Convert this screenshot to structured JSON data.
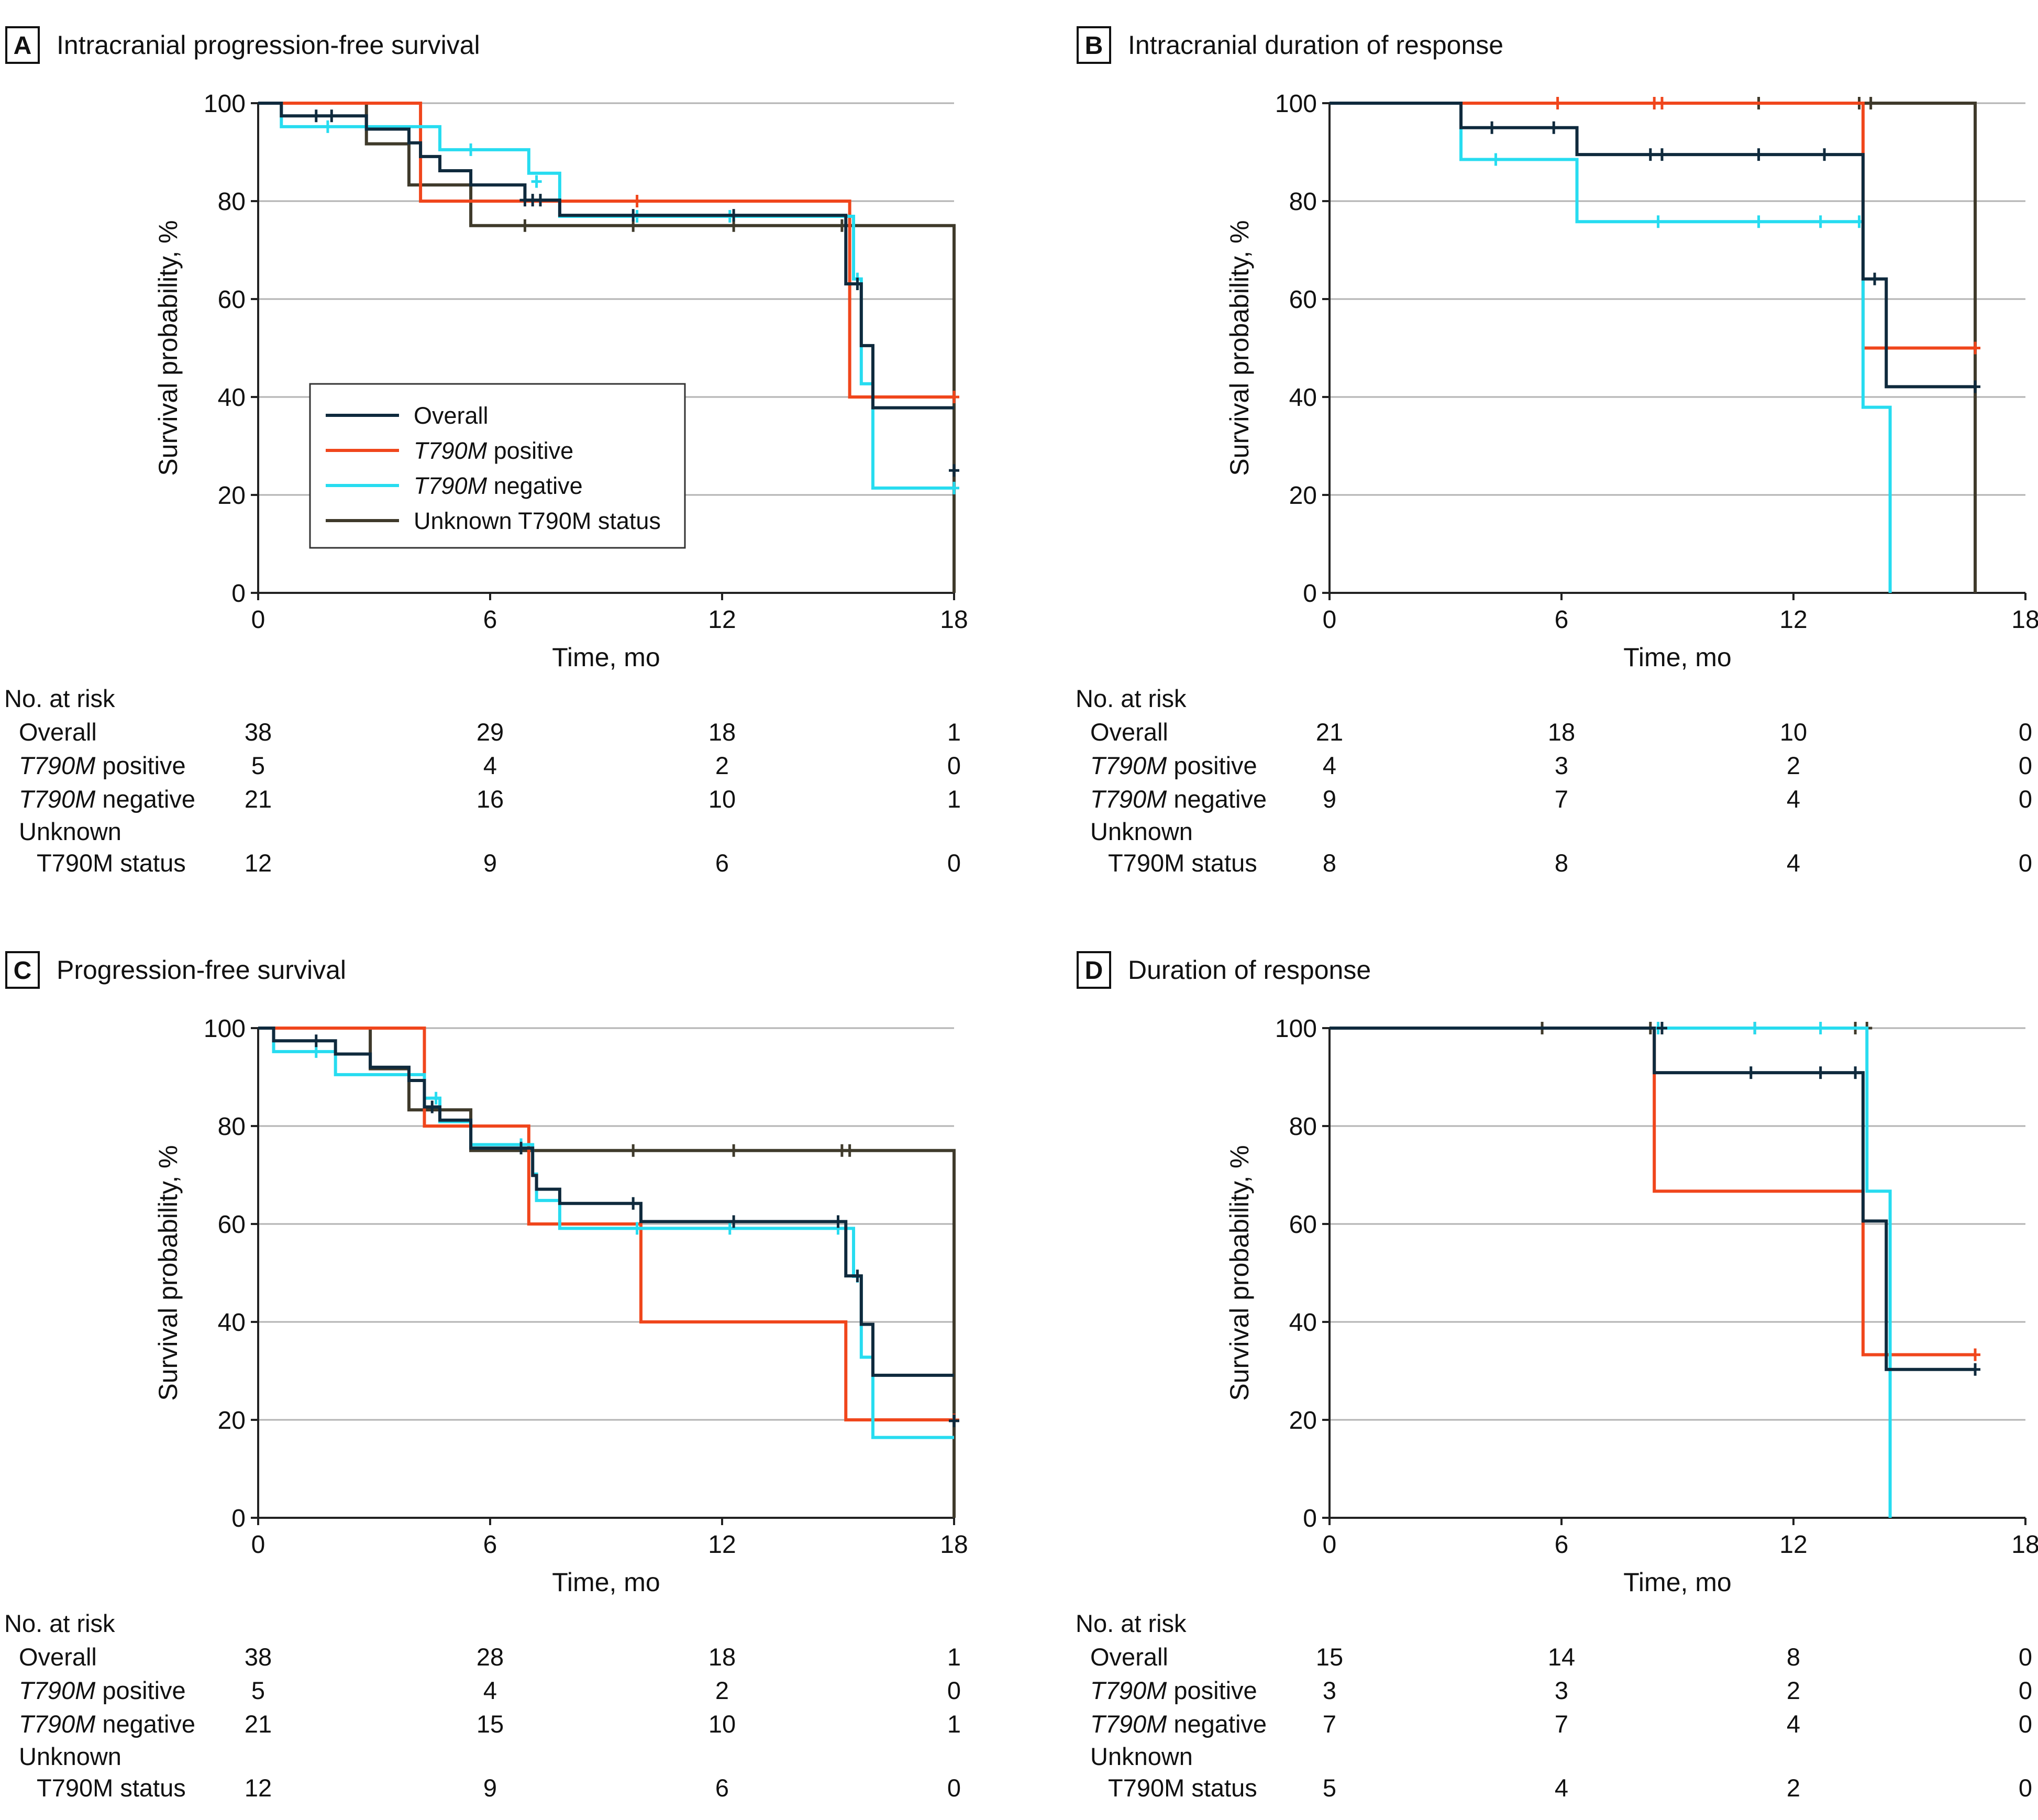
{
  "figure": {
    "axes": {
      "xlabel": "Time, mo",
      "ylabel": "Survival probability, %",
      "xticks": [
        0,
        6,
        12,
        18
      ],
      "yticks": [
        0,
        20,
        40,
        60,
        80,
        100
      ],
      "xlim": [
        0,
        18
      ],
      "ylim": [
        0,
        100
      ]
    },
    "colors": {
      "overall": "#0f2a3d",
      "t790m_positive": "#f0461c",
      "t790m_negative": "#27dcf0",
      "unknown": "#3f3a2b"
    },
    "legend": {
      "placement": "panel A, center-left inside plot",
      "items": [
        {
          "key": "overall",
          "label": "Overall",
          "italic": "",
          "rest": ""
        },
        {
          "key": "t790m_positive",
          "label": "",
          "italic": "T790M",
          "rest": " positive"
        },
        {
          "key": "t790m_negative",
          "label": "",
          "italic": "T790M",
          "rest": " negative"
        },
        {
          "key": "unknown",
          "label": "Unknown T790M status",
          "italic": "",
          "rest": ""
        }
      ]
    },
    "risk_table_labels": {
      "header": "No. at risk",
      "overall": "Overall",
      "positive_italic": "T790M",
      "positive_rest": " positive",
      "negative_italic": "T790M",
      "negative_rest": " negative",
      "unknown_line1": "Unknown",
      "unknown_line2": "T790M status"
    }
  },
  "chart_data": [
    {
      "id": "A",
      "letter": "A",
      "title": "Intracranial progression-free survival",
      "type": "line",
      "xlabel": "Time, mo",
      "ylabel": "Survival probability, %",
      "xlim": [
        0,
        18
      ],
      "ylim": [
        0,
        100
      ],
      "show_legend": true,
      "series": [
        {
          "key": "unknown",
          "name": "Unknown T790M status",
          "steps": [
            [
              0,
              100
            ],
            [
              2.8,
              91.7
            ],
            [
              3.9,
              83.3
            ],
            [
              5.5,
              75
            ],
            [
              18,
              0
            ]
          ],
          "censors": [
            [
              6.9,
              75
            ],
            [
              9.7,
              75
            ],
            [
              12.3,
              75
            ],
            [
              15.1,
              75
            ]
          ]
        },
        {
          "key": "t790m_positive",
          "name": "T790M positive",
          "steps": [
            [
              0,
              100
            ],
            [
              4.2,
              80
            ],
            [
              15.3,
              40
            ]
          ],
          "end": 18,
          "censors": [
            [
              9.8,
              80
            ],
            [
              18,
              40
            ]
          ]
        },
        {
          "key": "t790m_negative",
          "name": "T790M negative",
          "steps": [
            [
              0,
              100
            ],
            [
              0.6,
              95.2
            ],
            [
              4.7,
              90.5
            ],
            [
              7.0,
              85.7
            ],
            [
              7.8,
              76.9
            ],
            [
              15.4,
              64.1
            ],
            [
              15.6,
              42.7
            ],
            [
              15.9,
              21.4
            ]
          ],
          "end": 18,
          "censors": [
            [
              1.8,
              95.2
            ],
            [
              5.5,
              90.5
            ],
            [
              7.2,
              84
            ],
            [
              9.8,
              76.9
            ],
            [
              12.2,
              76.9
            ],
            [
              15.5,
              64.1
            ],
            [
              18,
              21.4
            ]
          ]
        },
        {
          "key": "overall",
          "name": "Overall",
          "steps": [
            [
              0,
              100
            ],
            [
              0.6,
              97.4
            ],
            [
              2.8,
              94.7
            ],
            [
              3.9,
              91.9
            ],
            [
              4.2,
              89.1
            ],
            [
              4.7,
              86.2
            ],
            [
              5.5,
              83.3
            ],
            [
              6.9,
              80.2
            ],
            [
              7.8,
              77.1
            ],
            [
              15.2,
              63.1
            ],
            [
              15.6,
              50.5
            ],
            [
              15.9,
              37.8
            ]
          ],
          "end": 18,
          "censors": [
            [
              1.5,
              97.4
            ],
            [
              1.9,
              97.4
            ],
            [
              6.9,
              80.2
            ],
            [
              7.1,
              80.2
            ],
            [
              7.3,
              80.2
            ],
            [
              9.7,
              77.1
            ],
            [
              12.3,
              77.1
            ],
            [
              15.5,
              63.1
            ],
            [
              18,
              25
            ]
          ]
        }
      ],
      "risk": {
        "columns": [
          0,
          6,
          12,
          18
        ],
        "overall": [
          38,
          29,
          18,
          1
        ],
        "positive": [
          5,
          4,
          2,
          0
        ],
        "negative": [
          21,
          16,
          10,
          1
        ],
        "unknown": [
          12,
          9,
          6,
          0
        ]
      }
    },
    {
      "id": "B",
      "letter": "B",
      "title": "Intracranial duration of response",
      "type": "line",
      "xlabel": "Time, mo",
      "ylabel": "Survival probability, %",
      "xlim": [
        0,
        18
      ],
      "ylim": [
        0,
        100
      ],
      "show_legend": false,
      "series": [
        {
          "key": "unknown",
          "name": "Unknown T790M status",
          "steps": [
            [
              0,
              100
            ],
            [
              16.7,
              0
            ]
          ],
          "censors": [
            [
              11.1,
              100
            ],
            [
              13.7,
              100
            ],
            [
              14.0,
              100
            ]
          ]
        },
        {
          "key": "t790m_positive",
          "name": "T790M positive",
          "steps": [
            [
              0,
              100
            ],
            [
              13.8,
              50
            ]
          ],
          "end": 16.7,
          "censors": [
            [
              5.9,
              100
            ],
            [
              8.4,
              100
            ],
            [
              8.6,
              100
            ],
            [
              16.7,
              50
            ]
          ]
        },
        {
          "key": "t790m_negative",
          "name": "T790M negative",
          "steps": [
            [
              0,
              100
            ],
            [
              3.4,
              88.5
            ],
            [
              6.4,
              75.8
            ],
            [
              13.8,
              37.9
            ],
            [
              14.5,
              0
            ]
          ],
          "censors": [
            [
              4.3,
              88.5
            ],
            [
              8.5,
              75.8
            ],
            [
              11.1,
              75.8
            ],
            [
              12.7,
              75.8
            ],
            [
              13.7,
              75.8
            ]
          ]
        },
        {
          "key": "overall",
          "name": "Overall",
          "steps": [
            [
              0,
              100
            ],
            [
              3.4,
              95
            ],
            [
              6.4,
              89.5
            ],
            [
              13.8,
              64.1
            ],
            [
              14.4,
              42.1
            ]
          ],
          "end": 16.7,
          "censors": [
            [
              4.2,
              95
            ],
            [
              5.8,
              95
            ],
            [
              8.3,
              89.5
            ],
            [
              8.6,
              89.5
            ],
            [
              11.1,
              89.5
            ],
            [
              12.8,
              89.5
            ],
            [
              14.1,
              64.1
            ],
            [
              16.7,
              42.1
            ]
          ]
        }
      ],
      "risk": {
        "columns": [
          0,
          6,
          12,
          18
        ],
        "overall": [
          21,
          18,
          10,
          0
        ],
        "positive": [
          4,
          3,
          2,
          0
        ],
        "negative": [
          9,
          7,
          4,
          0
        ],
        "unknown": [
          8,
          8,
          4,
          0
        ]
      }
    },
    {
      "id": "C",
      "letter": "C",
      "title": "Progression-free survival",
      "type": "line",
      "xlabel": "Time, mo",
      "ylabel": "Survival probability, %",
      "xlim": [
        0,
        18
      ],
      "ylim": [
        0,
        100
      ],
      "show_legend": false,
      "series": [
        {
          "key": "unknown",
          "name": "Unknown T790M status",
          "steps": [
            [
              0,
              100
            ],
            [
              2.9,
              91.7
            ],
            [
              3.9,
              83.3
            ],
            [
              5.5,
              75
            ],
            [
              18,
              0
            ]
          ],
          "censors": [
            [
              9.7,
              75
            ],
            [
              12.3,
              75
            ],
            [
              15.1,
              75
            ],
            [
              15.3,
              75
            ]
          ]
        },
        {
          "key": "t790m_positive",
          "name": "T790M positive",
          "steps": [
            [
              0,
              100
            ],
            [
              4.3,
              80
            ],
            [
              7.0,
              60
            ],
            [
              9.9,
              40
            ],
            [
              15.2,
              20
            ]
          ],
          "end": 18,
          "censors": [
            [
              18,
              20
            ]
          ]
        },
        {
          "key": "t790m_negative",
          "name": "T790M negative",
          "steps": [
            [
              0,
              100
            ],
            [
              0.4,
              95.2
            ],
            [
              2.0,
              90.5
            ],
            [
              4.3,
              85.7
            ],
            [
              4.7,
              80.9
            ],
            [
              5.5,
              76.2
            ],
            [
              7.1,
              70.2
            ],
            [
              7.2,
              64.8
            ],
            [
              7.8,
              59.1
            ],
            [
              15.4,
              49.3
            ],
            [
              15.6,
              32.8
            ],
            [
              15.9,
              16.4
            ]
          ],
          "end": 18,
          "censors": [
            [
              1.5,
              95.2
            ],
            [
              4.6,
              85.7
            ],
            [
              6.8,
              76.2
            ],
            [
              9.8,
              59.1
            ],
            [
              12.2,
              59.1
            ],
            [
              15.0,
              59.1
            ],
            [
              15.5,
              49.3
            ]
          ]
        },
        {
          "key": "overall",
          "name": "Overall",
          "steps": [
            [
              0,
              100
            ],
            [
              0.4,
              97.4
            ],
            [
              2.0,
              94.7
            ],
            [
              2.9,
              92
            ],
            [
              3.9,
              89.3
            ],
            [
              4.3,
              83.9
            ],
            [
              4.7,
              81.2
            ],
            [
              5.5,
              75.5
            ],
            [
              7.1,
              69.9
            ],
            [
              7.2,
              67.1
            ],
            [
              7.8,
              64.2
            ],
            [
              9.9,
              60.5
            ],
            [
              15.2,
              49.4
            ],
            [
              15.6,
              39.5
            ],
            [
              15.9,
              29.1
            ]
          ],
          "end": 18,
          "censors": [
            [
              1.5,
              97.4
            ],
            [
              4.5,
              83.9
            ],
            [
              6.8,
              75.5
            ],
            [
              9.7,
              64.2
            ],
            [
              12.3,
              60.5
            ],
            [
              15.0,
              60.5
            ],
            [
              15.5,
              49.4
            ],
            [
              18,
              19.8
            ]
          ]
        }
      ],
      "risk": {
        "columns": [
          0,
          6,
          12,
          18
        ],
        "overall": [
          38,
          28,
          18,
          1
        ],
        "positive": [
          5,
          4,
          2,
          0
        ],
        "negative": [
          21,
          15,
          10,
          1
        ],
        "unknown": [
          12,
          9,
          6,
          0
        ]
      }
    },
    {
      "id": "D",
      "letter": "D",
      "title": "Duration of response",
      "type": "line",
      "xlabel": "Time, mo",
      "ylabel": "Survival probability, %",
      "xlim": [
        0,
        18
      ],
      "ylim": [
        0,
        100
      ],
      "show_legend": false,
      "series": [
        {
          "key": "unknown",
          "name": "Unknown T790M status",
          "steps": [
            [
              0,
              100
            ]
          ],
          "end": 13.9,
          "censors": [
            [
              5.5,
              100
            ],
            [
              8.3,
              100
            ],
            [
              11.0,
              100
            ],
            [
              13.6,
              100
            ],
            [
              13.9,
              100
            ]
          ]
        },
        {
          "key": "t790m_positive",
          "name": "T790M positive",
          "steps": [
            [
              0,
              100
            ],
            [
              8.4,
              66.7
            ],
            [
              13.8,
              33.3
            ]
          ],
          "end": 16.7,
          "censors": [
            [
              16.7,
              33.3
            ]
          ]
        },
        {
          "key": "t790m_negative",
          "name": "T790M negative",
          "steps": [
            [
              0,
              100
            ],
            [
              13.9,
              66.7
            ],
            [
              14.5,
              0
            ]
          ],
          "censors": [
            [
              8.5,
              100
            ],
            [
              11.0,
              100
            ],
            [
              12.7,
              100
            ]
          ]
        },
        {
          "key": "overall",
          "name": "Overall",
          "steps": [
            [
              0,
              100
            ],
            [
              8.4,
              90.9
            ],
            [
              13.8,
              60.6
            ],
            [
              14.4,
              30.3
            ]
          ],
          "end": 16.7,
          "censors": [
            [
              8.6,
              100
            ],
            [
              10.9,
              90.9
            ],
            [
              12.7,
              90.9
            ],
            [
              13.6,
              90.9
            ],
            [
              16.7,
              30.3
            ]
          ]
        }
      ],
      "risk": {
        "columns": [
          0,
          6,
          12,
          18
        ],
        "overall": [
          15,
          14,
          8,
          0
        ],
        "positive": [
          3,
          3,
          2,
          0
        ],
        "negative": [
          7,
          7,
          4,
          0
        ],
        "unknown": [
          5,
          4,
          2,
          0
        ]
      }
    }
  ]
}
